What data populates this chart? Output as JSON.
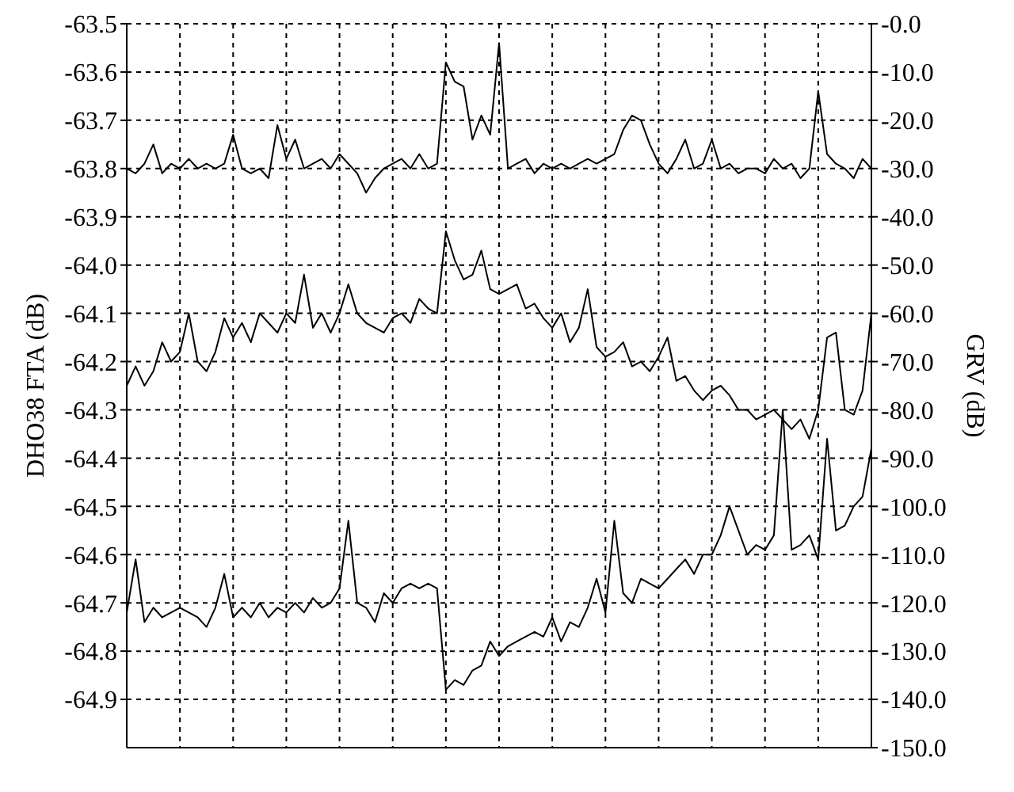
{
  "chart_data": {
    "type": "line",
    "ylabel": "DHO38 FTA (dB)",
    "y2label": "GRV (dB)",
    "categories": [
      null,
      null,
      null,
      null,
      null,
      null,
      null,
      null,
      null,
      null,
      null,
      null,
      null,
      null,
      null,
      null,
      null,
      null,
      null,
      null,
      null,
      null,
      null,
      null,
      null,
      null,
      null,
      null,
      null,
      null,
      null,
      null,
      null,
      null,
      null,
      null,
      null,
      null,
      null,
      null,
      null,
      null,
      null,
      null,
      null,
      null,
      null,
      null,
      null,
      null,
      null,
      null,
      null,
      null,
      null,
      null,
      null,
      null,
      null,
      null,
      null,
      null,
      null,
      null,
      null,
      null,
      null,
      null,
      null,
      null,
      null,
      null,
      null,
      null,
      null,
      null,
      null,
      null,
      null,
      null,
      null,
      null,
      null,
      null,
      null
    ],
    "series": [
      {
        "color": "#000000",
        "values": [
          -63.8,
          -63.81,
          -63.79,
          -63.75,
          -63.81,
          -63.79,
          -63.8,
          -63.78,
          -63.8,
          -63.79,
          -63.8,
          -63.79,
          -63.73,
          -63.8,
          -63.81,
          -63.8,
          -63.82,
          -63.71,
          -63.78,
          -63.74,
          -63.8,
          -63.79,
          -63.78,
          -63.8,
          -63.77,
          -63.79,
          -63.81,
          -63.85,
          -63.82,
          -63.8,
          -63.79,
          -63.78,
          -63.8,
          -63.77,
          -63.8,
          -63.79,
          -63.58,
          -63.62,
          -63.63,
          -63.74,
          -63.69,
          -63.73,
          -63.54,
          -63.8,
          -63.79,
          -63.78,
          -63.81,
          -63.79,
          -63.8,
          -63.79,
          -63.8,
          -63.79,
          -63.78,
          -63.79,
          -63.78,
          -63.77,
          -63.72,
          -63.69,
          -63.7,
          -63.75,
          -63.79,
          -63.81,
          -63.78,
          -63.74,
          -63.8,
          -63.79,
          -63.74,
          -63.8,
          -63.79,
          -63.81,
          -63.8,
          -63.8,
          -63.81,
          -63.78,
          -63.8,
          -63.79,
          -63.82,
          -63.8,
          -63.64,
          -63.77,
          -63.79,
          -63.8,
          -63.82,
          -63.78,
          -63.8
        ]
      },
      {
        "color": "#000000",
        "values": [
          -64.25,
          -64.21,
          -64.25,
          -64.22,
          -64.16,
          -64.2,
          -64.18,
          -64.1,
          -64.2,
          -64.22,
          -64.18,
          -64.11,
          -64.15,
          -64.12,
          -64.16,
          -64.1,
          -64.12,
          -64.14,
          -64.1,
          -64.12,
          -64.02,
          -64.13,
          -64.1,
          -64.14,
          -64.1,
          -64.04,
          -64.1,
          -64.12,
          -64.13,
          -64.14,
          -64.11,
          -64.1,
          -64.12,
          -64.07,
          -64.09,
          -64.1,
          -63.93,
          -63.99,
          -64.03,
          -64.02,
          -63.97,
          -64.05,
          -64.06,
          -64.05,
          -64.04,
          -64.09,
          -64.08,
          -64.11,
          -64.13,
          -64.1,
          -64.16,
          -64.13,
          -64.05,
          -64.17,
          -64.19,
          -64.18,
          -64.16,
          -64.21,
          -64.2,
          -64.22,
          -64.19,
          -64.15,
          -64.24,
          -64.23,
          -64.26,
          -64.28,
          -64.26,
          -64.25,
          -64.27,
          -64.3,
          -64.3,
          -64.32,
          -64.31,
          -64.3,
          -64.32,
          -64.34,
          -64.32,
          -64.36,
          -64.3,
          -64.15,
          -64.14,
          -64.3,
          -64.31,
          -64.26,
          -64.1
        ]
      },
      {
        "color": "#000000",
        "axis": "y2",
        "values": [
          -122,
          -111,
          -124,
          -121,
          -123,
          -122,
          -121,
          -122,
          -123,
          -125,
          -121,
          -114,
          -123,
          -121,
          -123,
          -120,
          -123,
          -121,
          -122,
          -120,
          -122,
          -119,
          -121,
          -120,
          -117,
          -103,
          -120,
          -121,
          -124,
          -118,
          -120,
          -117,
          -116,
          -117,
          -116,
          -117,
          -138,
          -136,
          -137,
          -134,
          -133,
          -128,
          -131,
          -129,
          -128,
          -127,
          -126,
          -127,
          -123,
          -128,
          -124,
          -125,
          -121,
          -115,
          -122,
          -103,
          -118,
          -120,
          -115,
          -116,
          -117,
          -115,
          -113,
          -111,
          -114,
          -110,
          -110,
          -106,
          -100,
          -105,
          -110,
          -108,
          -109,
          -106,
          -80,
          -109,
          -108,
          -106,
          -111,
          -86,
          -105,
          -104,
          -100,
          -98,
          -88
        ]
      }
    ],
    "ylim": [
      -65.0,
      -63.5
    ],
    "yticks": [
      -63.5,
      -63.6,
      -63.7,
      -63.8,
      -63.9,
      {
        "value": -64.0,
        "label": "-64.0"
      },
      -64.1,
      -64.2,
      -64.3,
      -64.4,
      -64.5,
      -64.6,
      -64.7,
      -64.8,
      -64.9
    ],
    "y2lim": [
      -150,
      0
    ],
    "y2ticks": [
      {
        "value": 0,
        "label": "-0.0"
      },
      {
        "value": -10,
        "label": "-10.0"
      },
      {
        "value": -20,
        "label": "-20.0"
      },
      {
        "value": -30,
        "label": "-30.0"
      },
      {
        "value": -40,
        "label": "-40.0"
      },
      {
        "value": -50,
        "label": "-50.0"
      },
      {
        "value": -60,
        "label": "-60.0"
      },
      {
        "value": -70,
        "label": "-70.0"
      },
      {
        "value": -80,
        "label": "-80.0"
      },
      {
        "value": -90,
        "label": "-90.0"
      },
      {
        "value": -100,
        "label": "-100.0"
      },
      {
        "value": -110,
        "label": "-110.0"
      },
      {
        "value": -120,
        "label": "-120.0"
      },
      {
        "value": -130,
        "label": "-130.0"
      },
      {
        "value": -140,
        "label": "-140.0"
      },
      {
        "value": -150,
        "label": "-150.0"
      }
    ],
    "grid": true,
    "marker": "none",
    "line_style": "solid"
  }
}
